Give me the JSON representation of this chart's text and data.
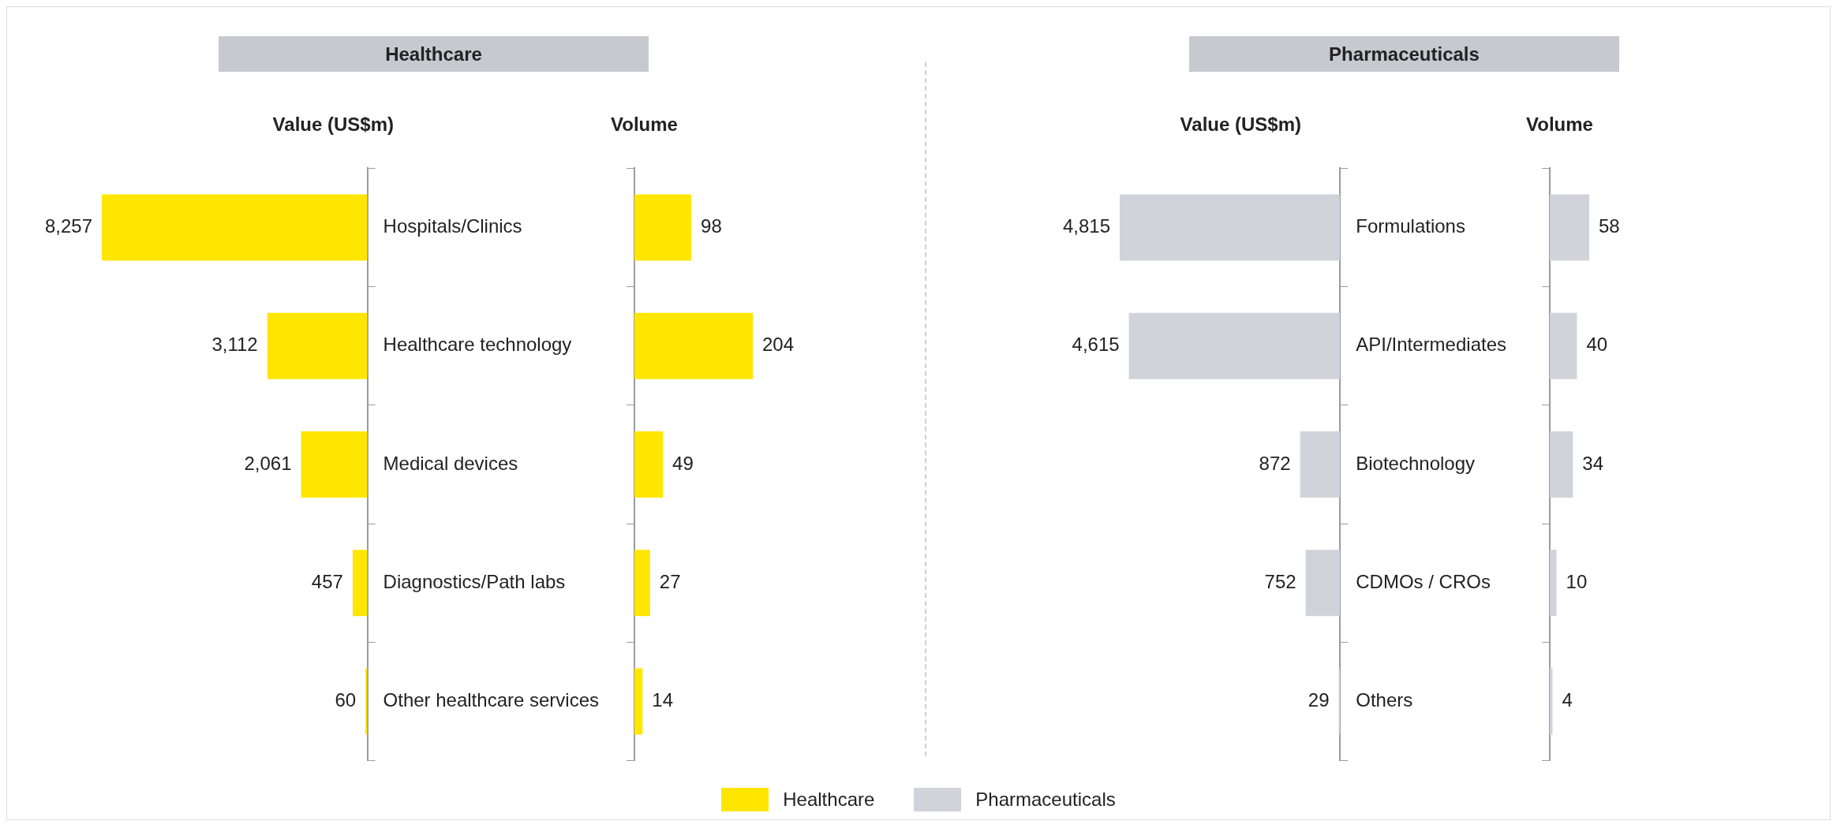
{
  "chart_data": [
    {
      "type": "bar",
      "orientation": "horizontal",
      "title": "Healthcare",
      "xlabel": "Value (US$m)",
      "categories": [
        "Hospitals/Clinics",
        "Healthcare technology",
        "Medical devices",
        "Diagnostics/Path labs",
        "Other healthcare services"
      ],
      "series": [
        {
          "name": "Healthcare",
          "color": "#ffe600",
          "values": [
            8257,
            3112,
            2061,
            457,
            60
          ],
          "value_labels": [
            "8,257",
            "3,112",
            "2,061",
            "457",
            "60"
          ]
        }
      ],
      "legend": "bottom"
    },
    {
      "type": "bar",
      "orientation": "horizontal",
      "xlabel": "Volume",
      "categories": [
        null,
        null,
        null,
        null,
        null
      ],
      "series": [
        {
          "color": "#ffe600",
          "values": [
            98,
            204,
            49,
            27,
            14
          ]
        }
      ],
      "data_labels": true
    },
    {
      "type": "bar",
      "orientation": "horizontal",
      "title": "Pharmaceuticals",
      "xlabel": "Value (US$m)",
      "categories": [
        "Formulations",
        "API/Intermediates",
        "Biotechnology",
        "CDMOs / CROs",
        "Others"
      ],
      "series": [
        {
          "name": "Pharmaceuticals",
          "color": "#d2d2da",
          "values": [
            4815,
            4615,
            872,
            752,
            29
          ],
          "value_labels": [
            "4,815",
            "4,615",
            "872",
            "752",
            "29"
          ]
        }
      ],
      "legend": "bottom"
    },
    {
      "type": "bar",
      "orientation": "horizontal",
      "xlabel": "Volume",
      "categories": [
        null,
        null,
        null,
        null,
        null
      ],
      "series": [
        {
          "color": "#d2d2da",
          "values": [
            58,
            40,
            34,
            10,
            4
          ]
        }
      ],
      "data_labels": true
    }
  ]
}
